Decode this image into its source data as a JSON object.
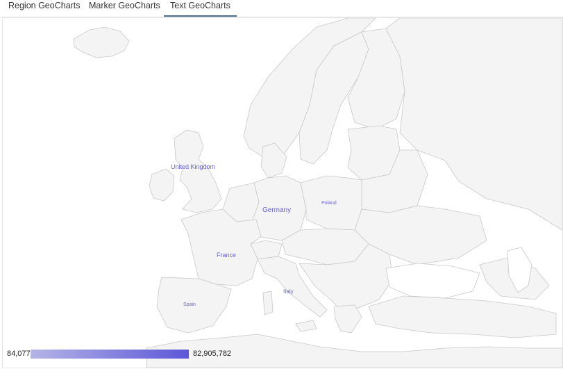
{
  "tabs": [
    {
      "label": "Region GeoCharts",
      "active": false
    },
    {
      "label": "Marker GeoCharts",
      "active": false
    },
    {
      "label": "Text GeoCharts",
      "active": true
    }
  ],
  "map": {
    "label_color": "#6a64d8",
    "labels": [
      {
        "name": "United Kingdom"
      },
      {
        "name": "Germany"
      },
      {
        "name": "France"
      },
      {
        "name": "Poland"
      },
      {
        "name": "Italy"
      },
      {
        "name": "Spain"
      }
    ]
  },
  "legend": {
    "min_label": "84,077",
    "max_label": "82,905,782",
    "color_start": "#b5b4e6",
    "color_end": "#5c57d8"
  }
}
